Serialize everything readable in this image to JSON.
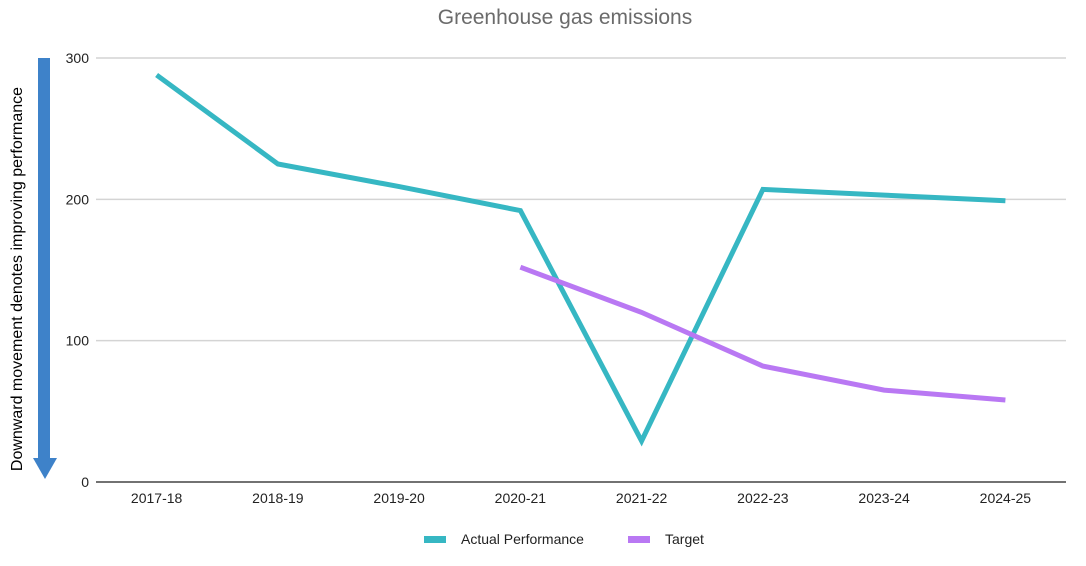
{
  "chart_data": {
    "type": "line",
    "title": "Greenhouse gas emissions",
    "side_label": "Downward movement denotes improving performance",
    "categories": [
      "2017-18",
      "2018-19",
      "2019-20",
      "2020-21",
      "2021-22",
      "2022-23",
      "2023-24",
      "2024-25"
    ],
    "ylim": [
      0,
      300
    ],
    "yticks": [
      "0",
      "100",
      "200",
      "300"
    ],
    "grid": true,
    "legend_position": "bottom",
    "series": [
      {
        "name": "Actual Performance",
        "color": "#36B7C3",
        "values": [
          288,
          225,
          209,
          192,
          29,
          207,
          203,
          199
        ]
      },
      {
        "name": "Target",
        "color": "#B978F3",
        "values": [
          null,
          null,
          null,
          152,
          120,
          82,
          65,
          58
        ]
      }
    ],
    "arrow_color": "#3E82C9"
  }
}
